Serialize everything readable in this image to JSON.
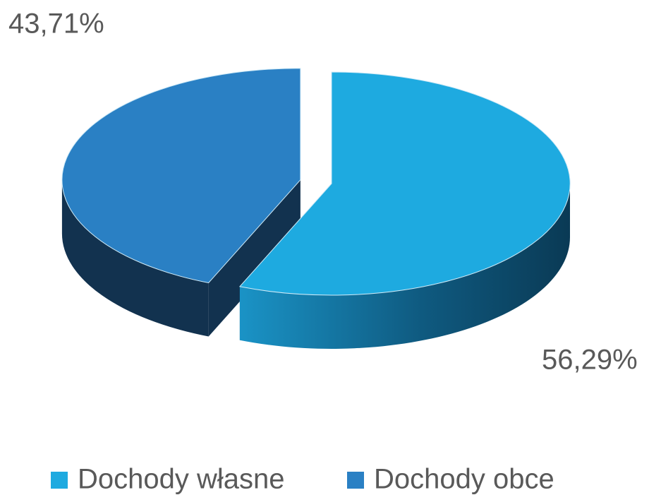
{
  "chart_data": {
    "type": "pie",
    "categories": [
      "Dochody własne",
      "Dochody obce"
    ],
    "values": [
      56.29,
      43.71
    ],
    "value_labels": [
      "56,29%",
      "43,71%"
    ],
    "colors": [
      "#1eaae0",
      "#2a80c4"
    ],
    "legend": "bottom"
  }
}
